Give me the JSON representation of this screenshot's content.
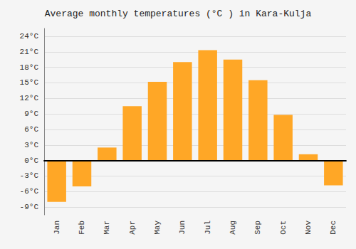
{
  "chart_data": {
    "type": "bar",
    "title": "Average monthly temperatures (°C ) in Kara-Kulja",
    "categories": [
      "Jan",
      "Feb",
      "Mar",
      "Apr",
      "May",
      "Jun",
      "Jul",
      "Aug",
      "Sep",
      "Oct",
      "Nov",
      "Dec"
    ],
    "values": [
      -8,
      -5,
      2.5,
      10.5,
      15.2,
      19.0,
      21.3,
      19.5,
      15.5,
      8.8,
      1.2,
      -4.8
    ],
    "color": "#FFA726",
    "ylim": [
      -10.5,
      25.5
    ],
    "yticks": [
      {
        "value": -9,
        "label": "-9°C"
      },
      {
        "value": -6,
        "label": "-6°C"
      },
      {
        "value": -3,
        "label": "-3°C"
      },
      {
        "value": 0,
        "label": "0°C"
      },
      {
        "value": 3,
        "label": "3°C"
      },
      {
        "value": 6,
        "label": "6°C"
      },
      {
        "value": 9,
        "label": "9°C"
      },
      {
        "value": 12,
        "label": "12°C"
      },
      {
        "value": 15,
        "label": "15°C"
      },
      {
        "value": 18,
        "label": "18°C"
      },
      {
        "value": 21,
        "label": "21°C"
      },
      {
        "value": 24,
        "label": "24°C"
      }
    ],
    "grid": true
  }
}
